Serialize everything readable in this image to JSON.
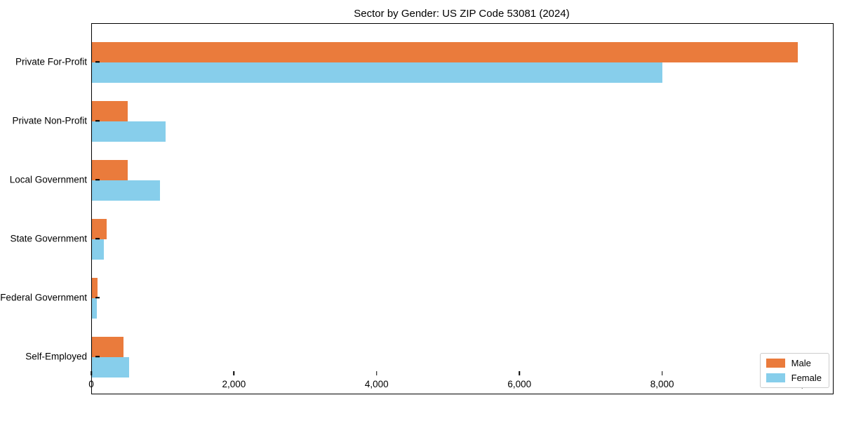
{
  "title": "Sector by Gender: US ZIP Code 53081 (2024)",
  "colors": {
    "male": "#EA7B3C",
    "female": "#87CEEB",
    "axis": "#000000",
    "legend_border": "#CCCCCC",
    "background": "#FFFFFF"
  },
  "legend": {
    "position": "lower right",
    "items": [
      {
        "label": "Male",
        "color_key": "male"
      },
      {
        "label": "Female",
        "color_key": "female"
      }
    ]
  },
  "chart_data": {
    "type": "bar",
    "orientation": "horizontal",
    "title": "Sector by Gender: US ZIP Code 53081 (2024)",
    "xlabel": "",
    "ylabel": "",
    "categories": [
      "Private For-Profit",
      "Private Non-Profit",
      "Local Government",
      "State Government",
      "Federal Government",
      "Self-Employed"
    ],
    "series": [
      {
        "name": "Male",
        "color": "#EA7B3C",
        "values": [
          9890,
          500,
          505,
          210,
          80,
          440
        ]
      },
      {
        "name": "Female",
        "color": "#87CEEB",
        "values": [
          7990,
          1030,
          950,
          170,
          70,
          520
        ]
      }
    ],
    "xlim": [
      0,
      10383
    ],
    "x_ticks": [
      0,
      2000,
      4000,
      6000,
      8000,
      10000
    ],
    "x_tick_labels": [
      "0",
      "2,000",
      "4,000",
      "6,000",
      "8,000",
      "10,000"
    ],
    "grid": false,
    "legend_position": "lower right"
  }
}
